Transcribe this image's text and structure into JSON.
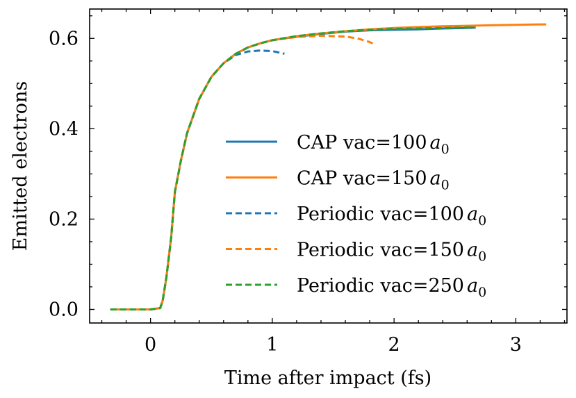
{
  "chart_data": {
    "type": "line",
    "title": "",
    "xlabel": "Time after impact (fs)",
    "ylabel": "Emitted electrons",
    "xlim": [
      -0.5,
      3.42
    ],
    "ylim": [
      -0.03,
      0.665
    ],
    "xticks": [
      0,
      1,
      2,
      3
    ],
    "xtick_labels": [
      "0",
      "1",
      "2",
      "3"
    ],
    "yticks": [
      0.0,
      0.2,
      0.4,
      0.6
    ],
    "ytick_labels": [
      "0.0",
      "0.2",
      "0.4",
      "0.6"
    ],
    "minor_step_x": 0.2,
    "minor_step_y": 0.05,
    "grid": false,
    "legend_position": "center-right",
    "series": [
      {
        "name": "CAP vac=100",
        "label_main": "CAP vac=100",
        "label_sub": "0",
        "label_var": "a",
        "color": "#1f77b4",
        "style": "solid",
        "x": [
          -0.33,
          0.0,
          0.08,
          0.1,
          0.13,
          0.17,
          0.2,
          0.25,
          0.3,
          0.4,
          0.5,
          0.6,
          0.7,
          0.8,
          0.9,
          1.0,
          1.2,
          1.4,
          1.6,
          1.8,
          2.0,
          2.2,
          2.4,
          2.6,
          2.67
        ],
        "y": [
          0.0,
          0.0,
          0.003,
          0.02,
          0.07,
          0.16,
          0.26,
          0.33,
          0.39,
          0.466,
          0.515,
          0.545,
          0.566,
          0.58,
          0.589,
          0.596,
          0.604,
          0.61,
          0.615,
          0.618,
          0.619,
          0.62,
          0.622,
          0.623,
          0.624
        ]
      },
      {
        "name": "CAP vac=150",
        "label_main": "CAP vac=150",
        "label_sub": "0",
        "label_var": "a",
        "color": "#ff7f0e",
        "style": "solid",
        "x": [
          -0.33,
          0.0,
          0.08,
          0.1,
          0.13,
          0.17,
          0.2,
          0.25,
          0.3,
          0.4,
          0.5,
          0.6,
          0.7,
          0.8,
          0.9,
          1.0,
          1.2,
          1.4,
          1.6,
          1.8,
          2.0,
          2.2,
          2.4,
          2.6,
          2.8,
          3.0,
          3.2,
          3.25
        ],
        "y": [
          0.0,
          0.0,
          0.003,
          0.02,
          0.07,
          0.16,
          0.26,
          0.33,
          0.39,
          0.466,
          0.515,
          0.545,
          0.566,
          0.58,
          0.589,
          0.596,
          0.605,
          0.611,
          0.616,
          0.62,
          0.623,
          0.625,
          0.627,
          0.628,
          0.629,
          0.63,
          0.631,
          0.631
        ]
      },
      {
        "name": "Periodic vac=100",
        "label_main": "Periodic vac=100",
        "label_sub": "0",
        "label_var": "a",
        "color": "#1f77b4",
        "style": "dashed",
        "x": [
          -0.33,
          0.0,
          0.08,
          0.1,
          0.13,
          0.17,
          0.2,
          0.25,
          0.3,
          0.4,
          0.5,
          0.6,
          0.7,
          0.8,
          0.9,
          1.0,
          1.1
        ],
        "y": [
          0.0,
          0.0,
          0.003,
          0.02,
          0.07,
          0.16,
          0.26,
          0.33,
          0.39,
          0.466,
          0.515,
          0.545,
          0.563,
          0.571,
          0.573,
          0.572,
          0.566
        ]
      },
      {
        "name": "Periodic vac=150",
        "label_main": "Periodic vac=150",
        "label_sub": "0",
        "label_var": "a",
        "color": "#ff7f0e",
        "style": "dashed",
        "x": [
          -0.33,
          0.0,
          0.08,
          0.1,
          0.13,
          0.17,
          0.2,
          0.25,
          0.3,
          0.4,
          0.5,
          0.6,
          0.7,
          0.8,
          0.9,
          1.0,
          1.2,
          1.4,
          1.6,
          1.7,
          1.8,
          1.83
        ],
        "y": [
          0.0,
          0.0,
          0.003,
          0.02,
          0.07,
          0.16,
          0.26,
          0.33,
          0.39,
          0.466,
          0.515,
          0.545,
          0.566,
          0.58,
          0.589,
          0.596,
          0.603,
          0.606,
          0.604,
          0.6,
          0.592,
          0.588
        ]
      },
      {
        "name": "Periodic vac=250",
        "label_main": "Periodic vac=250",
        "label_sub": "0",
        "label_var": "a",
        "color": "#2ca02c",
        "style": "dashed",
        "x": [
          -0.33,
          0.0,
          0.08,
          0.1,
          0.13,
          0.17,
          0.2,
          0.25,
          0.3,
          0.4,
          0.5,
          0.6,
          0.7,
          0.8,
          0.9,
          1.0,
          1.2,
          1.4,
          1.6,
          1.8,
          2.0,
          2.2,
          2.4,
          2.6,
          2.67
        ],
        "y": [
          0.0,
          0.0,
          0.003,
          0.02,
          0.07,
          0.16,
          0.26,
          0.33,
          0.39,
          0.466,
          0.515,
          0.545,
          0.566,
          0.58,
          0.589,
          0.596,
          0.605,
          0.611,
          0.616,
          0.619,
          0.621,
          0.622,
          0.623,
          0.624,
          0.624
        ]
      }
    ]
  }
}
